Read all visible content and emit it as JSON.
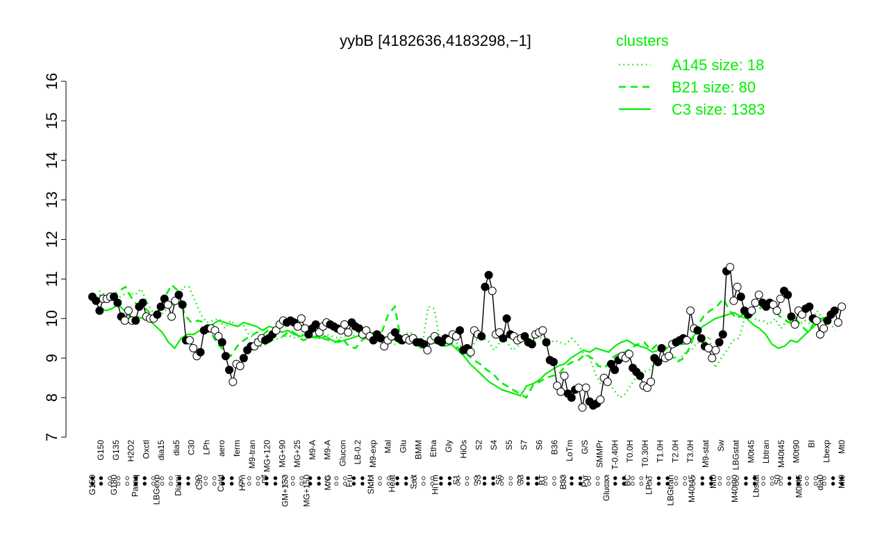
{
  "chart_data": {
    "type": "line",
    "title": "yybB [4182636,4183298,−1]",
    "xlabel": "",
    "ylabel": "",
    "ylim": [
      7,
      16
    ],
    "yticks": [
      7,
      8,
      9,
      10,
      11,
      12,
      13,
      14,
      15,
      16
    ],
    "grid": false,
    "legend": {
      "placement": "top-right",
      "title": "clusters",
      "color": "#00ee00",
      "entries": [
        {
          "label": "A145 size: 18",
          "style": "dotted"
        },
        {
          "label": "B21 size: 80",
          "style": "dashed"
        },
        {
          "label": "C3 size: 1383",
          "style": "solid"
        }
      ]
    },
    "x_tick_labels": [
      "G150",
      "G135",
      "H2O2",
      "Oxctl",
      "dia15",
      "dia5",
      "C30",
      "LPh",
      "aero",
      "ferm",
      "M9-tran",
      "MG+120",
      "MG+90",
      "MG+25",
      "M9-A",
      "M9-A",
      "Glucon",
      "LB-0.2",
      "M9-exp",
      "Mal",
      "Glu",
      "BMM",
      "Etha",
      "Gly",
      "HiOs",
      "S2",
      "S4",
      "S5",
      "S7",
      "S6",
      "B36",
      "LoTm",
      "G/S",
      "SMMPr",
      "T-0.40H",
      "T0.0H",
      "T0.30H",
      "T1.0H",
      "T2.0H",
      "T3.0H",
      "M9-stat",
      "Sw",
      "LBGstat",
      "M0t45",
      "Lbtran",
      "M40t45",
      "M0t90",
      "BI",
      "Lbexp",
      "M40t45",
      "dia0",
      "Mt0",
      "Lbexp",
      "G180",
      "Paraq",
      "LBGexp",
      "Diami",
      "C90",
      "Cold",
      "HPh",
      "nit",
      "GM+150",
      "MG+150",
      "M/G",
      "Fru",
      "SMM",
      "Heat",
      "Salt",
      "HiTm",
      "S1",
      "S3",
      "S3",
      "S6",
      "S8",
      "BT",
      "B60",
      "Pyr",
      "Glucon",
      "BC",
      "LPhT",
      "LBGtran",
      "M40t45",
      "Mt0",
      "M40t90",
      "Lbstat",
      "S0",
      "M0t45"
    ],
    "x_labels_upper": [
      "G150",
      "G135",
      "H2O2",
      "Oxctl",
      "dia15",
      "dia5",
      "C30",
      "LPh",
      "aero",
      "ferm",
      "M9-tran",
      "MG+120",
      "MG+90",
      "MG+25",
      "M9-A",
      "M9-A",
      "Glucon",
      "LB-0.2",
      "M9-exp",
      "Mal",
      "Glu",
      "BMM",
      "Etha",
      "Gly",
      "HiOs",
      "S2",
      "S4",
      "S5",
      "S7",
      "S6",
      "B36",
      "LoTm",
      "G/S",
      "SMMPr",
      "T-0.40H",
      "T0.0H",
      "T0.30H",
      "T1.0H",
      "T2.0H",
      "T3.0H",
      "M9-stat",
      "Sw",
      "LBGstat",
      "M0t45",
      "Lbtran",
      "M40t45",
      "M0t90",
      "BI",
      "Lbexp",
      "Mt0"
    ],
    "x_labels_lower": [
      "G150",
      "G180",
      "Paraq",
      "LBGexp",
      "Diami",
      "C90",
      "Cold",
      "HPh",
      "nit",
      "GM+150",
      "MG+150",
      "M/G",
      "Fru",
      "SMM",
      "Heat",
      "Salt",
      "HiTm",
      "S1",
      "S3",
      "S6",
      "S8",
      "BT",
      "B60",
      "Pyr",
      "Glucon",
      "BC",
      "LPhT",
      "LBGtran",
      "M40t45",
      "Mt0",
      "M40t90",
      "Lbstat",
      "S0",
      "M0t45",
      "dia0",
      "Mt0"
    ],
    "series": [
      {
        "style": "line",
        "color": "#000000",
        "values": [
          10.55,
          10.45,
          10.2,
          10.5,
          10.5,
          10.55,
          10.55,
          10.4,
          10.05,
          9.95,
          10.2,
          9.95,
          9.95,
          10.3,
          10.4,
          10.05,
          10.0,
          10.0,
          10.1,
          10.3,
          10.5,
          10.35,
          10.05,
          10.45,
          10.6,
          10.35,
          9.45,
          9.45,
          9.25,
          9.05,
          9.15,
          9.7,
          9.75,
          9.75,
          9.7,
          9.55,
          9.4,
          9.05,
          8.7,
          8.4,
          8.85,
          8.8,
          9.0,
          9.2,
          9.3,
          9.3,
          9.4,
          9.5,
          9.45,
          9.5,
          9.6,
          9.7,
          9.85,
          9.95,
          9.9,
          9.95,
          9.9,
          9.8,
          10.0,
          9.75,
          9.6,
          9.75,
          9.85,
          9.65,
          9.8,
          9.9,
          9.85,
          9.8,
          9.75,
          9.7,
          9.85,
          9.65,
          9.9,
          9.8,
          9.75,
          9.6,
          9.7,
          9.55,
          9.45,
          9.6,
          9.5,
          9.3,
          9.45,
          9.55,
          9.65,
          9.5,
          9.45,
          9.5,
          9.45,
          9.5,
          9.4,
          9.4,
          9.35,
          9.2,
          9.45,
          9.55,
          9.45,
          9.4,
          9.5,
          9.45,
          9.6,
          9.55,
          9.7,
          9.2,
          9.25,
          9.15,
          9.7,
          9.6,
          9.55,
          10.8,
          11.1,
          10.7,
          9.6,
          9.65,
          9.5,
          10.0,
          9.6,
          9.55,
          9.45,
          9.5,
          9.55,
          9.4,
          9.35,
          9.6,
          9.65,
          9.7,
          9.4,
          8.95,
          8.9,
          8.3,
          8.15,
          8.55,
          8.1,
          8.0,
          8.2,
          8.25,
          7.75,
          8.25,
          7.9,
          7.8,
          7.85,
          7.95,
          8.5,
          8.4,
          8.85,
          8.7,
          8.95,
          9.05,
          9.0,
          9.1,
          8.75,
          8.65,
          8.55,
          8.3,
          8.25,
          8.4,
          9.0,
          8.9,
          9.25,
          9.0,
          9.05,
          9.35,
          9.4,
          9.45,
          9.5,
          9.45,
          10.2,
          9.75,
          9.7,
          9.5,
          9.3,
          9.25,
          9.0,
          9.2,
          9.4,
          9.6,
          11.2,
          11.3,
          10.45,
          10.8,
          10.55,
          10.2,
          10.1,
          10.2,
          10.4,
          10.6,
          10.4,
          10.3,
          10.4,
          10.35,
          10.2,
          10.5,
          10.7,
          10.6,
          10.05,
          9.85,
          10.2,
          10.1,
          10.25,
          10.3,
          10.0,
          9.95,
          9.6,
          9.75,
          9.95,
          10.1,
          10.2,
          9.9,
          10.3
        ],
        "markers": "filled/open alternating by condition"
      }
    ],
    "cluster_lines": [
      {
        "name": "A145 size: 18",
        "style": "dotted",
        "values": [
          10.7,
          10.6,
          10.55,
          10.5,
          10.6,
          10.65,
          10.6,
          10.75,
          10.4,
          10.15,
          10.05,
          10.2,
          10.3,
          10.45,
          10.8,
          10.8,
          10.45,
          10.1,
          9.9,
          9.95,
          10.0,
          9.75,
          9.95,
          9.8,
          9.85,
          9.6,
          9.5,
          9.3,
          9.35,
          9.45,
          9.5,
          9.55,
          9.55,
          9.5,
          9.6,
          9.55,
          9.5,
          9.55,
          9.6,
          9.55,
          9.5,
          9.55,
          9.6,
          9.55,
          9.6,
          9.7,
          9.5,
          9.45,
          9.5,
          9.35,
          9.35,
          9.6,
          9.65,
          9.55,
          9.3,
          10.3,
          10.25,
          9.4,
          9.45,
          9.5,
          9.35,
          9.25,
          9.2,
          9.45,
          9.5,
          9.45,
          9.2,
          9.4,
          9.45,
          9.2,
          9.3,
          9.5,
          9.5,
          9.55,
          9.5,
          9.3,
          9.45,
          9.4,
          9.35,
          9.5,
          9.35,
          9.1,
          9.0,
          8.6,
          8.3,
          8.4,
          8.2,
          8.0,
          8.1,
          8.35,
          8.55,
          8.65,
          8.7,
          8.9,
          9.0,
          9.05,
          9.05,
          8.95,
          9.15,
          9.2,
          9.4,
          9.35,
          9.55,
          8.75,
          9.0,
          9.2,
          9.45,
          9.5,
          10.05,
          10.1,
          9.95,
          9.95,
          9.85,
          10.0,
          9.75,
          9.95,
          9.8,
          9.85,
          9.95,
          9.85,
          10.2,
          10.0,
          9.95,
          9.7
        ]
      },
      {
        "name": "B21 size: 80",
        "style": "dashed",
        "values": [
          10.6,
          10.55,
          10.6,
          10.7,
          10.8,
          10.5,
          10.3,
          10.25,
          10.1,
          10.2,
          10.55,
          10.85,
          10.7,
          10.1,
          9.9,
          9.95,
          9.9,
          9.65,
          9.35,
          9.2,
          9.05,
          9.3,
          9.45,
          9.55,
          9.65,
          9.6,
          9.75,
          9.65,
          9.55,
          9.7,
          9.6,
          9.45,
          9.5,
          9.55,
          9.5,
          9.45,
          9.4,
          9.5,
          9.3,
          9.25,
          9.45,
          9.55,
          9.55,
          9.65,
          10.1,
          10.3,
          9.4,
          9.5,
          9.4,
          9.25,
          9.4,
          9.35,
          9.45,
          9.4,
          9.35,
          9.2,
          9.1,
          8.95,
          8.85,
          8.7,
          8.6,
          8.4,
          8.3,
          8.2,
          8.1,
          8.0,
          8.3,
          8.4,
          8.5,
          8.55,
          8.6,
          8.8,
          8.9,
          8.95,
          9.1,
          9.0,
          8.8,
          8.75,
          9.0,
          9.1,
          9.15,
          9.25,
          9.35,
          9.4,
          9.2,
          9.35,
          9.3,
          9.1,
          8.9,
          9.0,
          9.3,
          9.8,
          10.05,
          10.2,
          10.3,
          10.5,
          10.2,
          10.0,
          10.1,
          10.1,
          10.2,
          10.3,
          10.4,
          10.15,
          10.0,
          9.9,
          10.0,
          9.8,
          9.65,
          9.95,
          10.0,
          10.05,
          10.15
        ]
      },
      {
        "name": "C3 size: 1383",
        "style": "solid",
        "values": [
          10.3,
          10.2,
          10.25,
          10.35,
          10.2,
          10.0,
          10.05,
          10.0,
          9.95,
          9.8,
          9.65,
          9.4,
          9.25,
          9.5,
          9.6,
          9.6,
          9.7,
          9.8,
          9.85,
          9.95,
          9.9,
          9.85,
          9.8,
          9.9,
          9.85,
          9.8,
          9.7,
          9.8,
          9.75,
          9.65,
          9.7,
          9.6,
          9.55,
          9.6,
          9.55,
          9.5,
          9.55,
          9.45,
          9.4,
          9.45,
          9.5,
          9.55,
          9.6,
          9.65,
          9.6,
          9.55,
          9.5,
          9.45,
          9.5,
          9.4,
          9.45,
          9.35,
          9.35,
          9.4,
          9.35,
          9.3,
          9.35,
          9.2,
          9.05,
          8.85,
          8.7,
          8.55,
          8.4,
          8.3,
          8.2,
          8.15,
          8.1,
          8.05,
          8.3,
          8.35,
          8.45,
          8.6,
          8.7,
          8.8,
          8.85,
          9.0,
          9.1,
          9.2,
          9.15,
          9.25,
          9.2,
          9.15,
          9.3,
          9.4,
          9.45,
          9.35,
          9.3,
          9.25,
          9.15,
          9.2,
          9.25,
          9.3,
          9.35,
          9.35,
          9.45,
          9.65,
          9.8,
          9.9,
          10.0,
          10.05,
          10.1,
          10.15,
          10.05,
          10.0,
          9.85,
          9.75,
          9.6,
          9.35,
          9.25,
          9.3,
          9.45,
          9.4,
          9.55,
          9.7,
          9.85,
          9.95,
          10.05,
          10.15
        ]
      }
    ]
  }
}
